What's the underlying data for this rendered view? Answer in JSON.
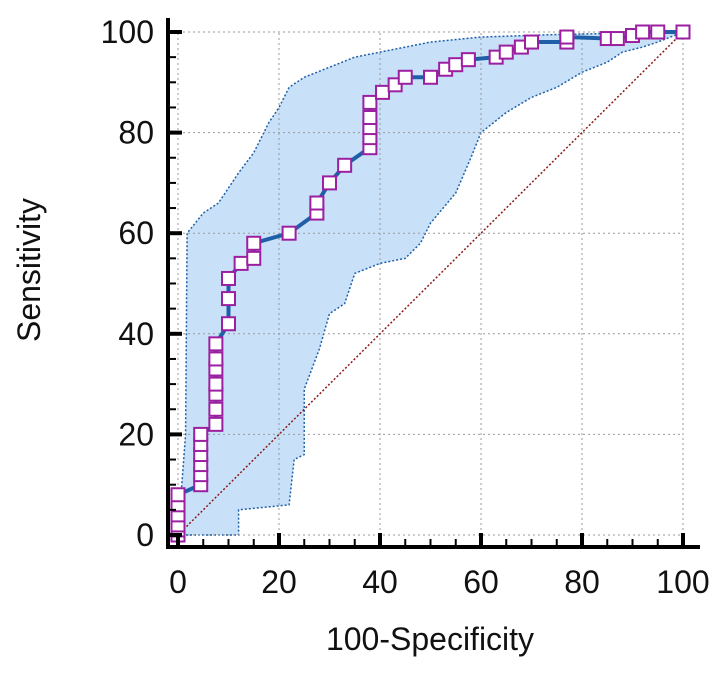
{
  "chart_data": {
    "type": "line",
    "xlabel": "100-Specificity",
    "ylabel": "Sensitivity",
    "xlim": [
      0,
      100
    ],
    "ylim": [
      0,
      100
    ],
    "xticks": [
      0,
      20,
      40,
      60,
      80,
      100
    ],
    "yticks": [
      0,
      20,
      40,
      60,
      80,
      100
    ],
    "grid": true,
    "colors": {
      "curve": "#1f5fa8",
      "marker": "#9b1fa0",
      "band": "#c8e1f8",
      "band_edge": "#1f5fa8",
      "diagonal": "#8b1a1a",
      "grid": "#999999"
    },
    "roc_points": [
      [
        0,
        0
      ],
      [
        0,
        1
      ],
      [
        0,
        2
      ],
      [
        0,
        4
      ],
      [
        0,
        6
      ],
      [
        0,
        8
      ],
      [
        4.5,
        10
      ],
      [
        4.5,
        12
      ],
      [
        4.5,
        14
      ],
      [
        4.5,
        16
      ],
      [
        4.5,
        18
      ],
      [
        4.5,
        20
      ],
      [
        7.5,
        22
      ],
      [
        7.5,
        25
      ],
      [
        7.5,
        28
      ],
      [
        7.5,
        30
      ],
      [
        7.5,
        33
      ],
      [
        7.5,
        35
      ],
      [
        7.5,
        38
      ],
      [
        10,
        42
      ],
      [
        10,
        47
      ],
      [
        10,
        51
      ],
      [
        12.5,
        54
      ],
      [
        15,
        55
      ],
      [
        15,
        58
      ],
      [
        22,
        60
      ],
      [
        27.5,
        64
      ],
      [
        27.5,
        66
      ],
      [
        30,
        70
      ],
      [
        33,
        73.5
      ],
      [
        38,
        77
      ],
      [
        38,
        79
      ],
      [
        38,
        81
      ],
      [
        38,
        83
      ],
      [
        38,
        86
      ],
      [
        40.5,
        88
      ],
      [
        43,
        89.5
      ],
      [
        45,
        91
      ],
      [
        50,
        91
      ],
      [
        53,
        92.6
      ],
      [
        55,
        93.5
      ],
      [
        57.5,
        94.5
      ],
      [
        63,
        95
      ],
      [
        65,
        96
      ],
      [
        68,
        97
      ],
      [
        70,
        98
      ],
      [
        77,
        98
      ],
      [
        77,
        99
      ],
      [
        85,
        98.7
      ],
      [
        87,
        98.7
      ],
      [
        90,
        99.3
      ],
      [
        92,
        100
      ],
      [
        95,
        100
      ],
      [
        100,
        100
      ]
    ],
    "ci_upper": [
      [
        0,
        0
      ],
      [
        1.5,
        20
      ],
      [
        1.8,
        60
      ],
      [
        5,
        64
      ],
      [
        8,
        66
      ],
      [
        12,
        72
      ],
      [
        15,
        76
      ],
      [
        18,
        82
      ],
      [
        20,
        85
      ],
      [
        22,
        89
      ],
      [
        25,
        91
      ],
      [
        30,
        93
      ],
      [
        35,
        95
      ],
      [
        40,
        96
      ],
      [
        45,
        97
      ],
      [
        50,
        98
      ],
      [
        60,
        99
      ],
      [
        75,
        99.5
      ],
      [
        100,
        100
      ]
    ],
    "ci_lower": [
      [
        0,
        0
      ],
      [
        12,
        0
      ],
      [
        12,
        5
      ],
      [
        22,
        6
      ],
      [
        23,
        15
      ],
      [
        25,
        16
      ],
      [
        25,
        29
      ],
      [
        28,
        37
      ],
      [
        30,
        44
      ],
      [
        33,
        46
      ],
      [
        35,
        52
      ],
      [
        40,
        54
      ],
      [
        45,
        55
      ],
      [
        48,
        58
      ],
      [
        50,
        62
      ],
      [
        55,
        68
      ],
      [
        58,
        75
      ],
      [
        60,
        80
      ],
      [
        65,
        84
      ],
      [
        70,
        87
      ],
      [
        75,
        89
      ],
      [
        80,
        92
      ],
      [
        85,
        94
      ],
      [
        88,
        96
      ],
      [
        92,
        97
      ],
      [
        95,
        98
      ],
      [
        100,
        100
      ]
    ],
    "reference_line": [
      [
        0,
        0
      ],
      [
        100,
        100
      ]
    ]
  }
}
